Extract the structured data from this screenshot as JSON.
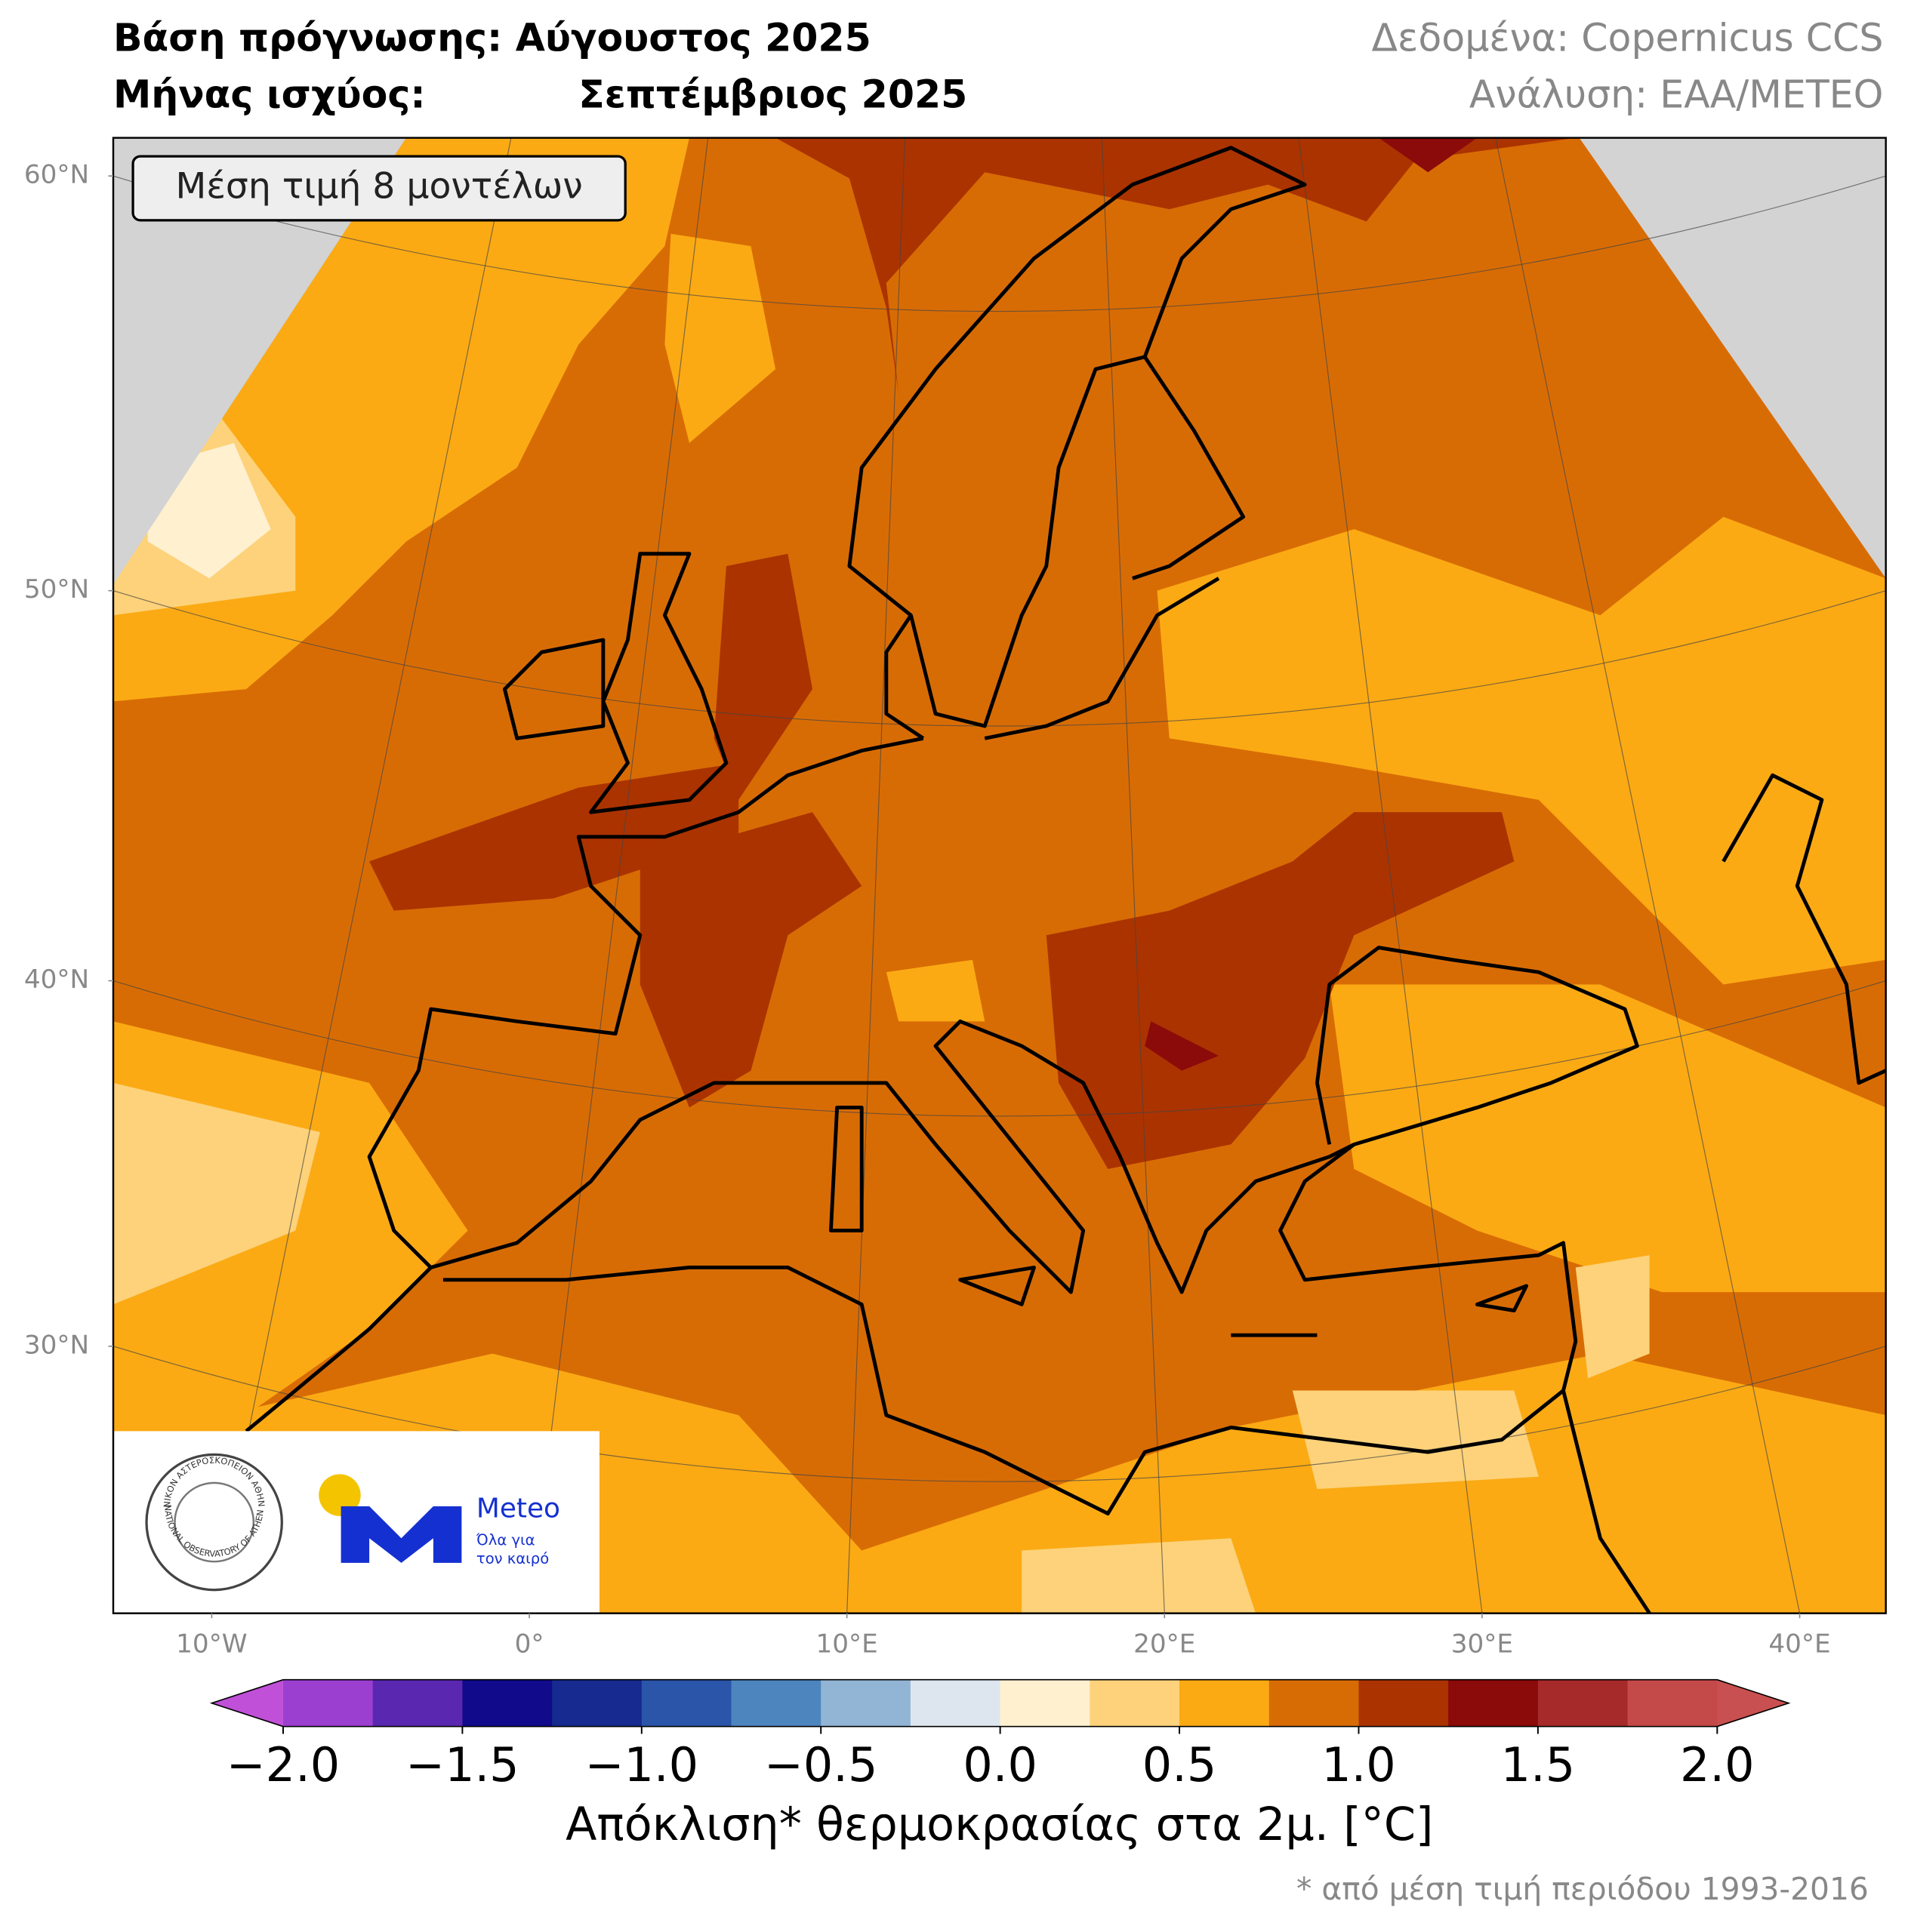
{
  "header": {
    "forecast_base": "Βάση πρόγνωσης: Αύγουστος 2025",
    "valid_label": "Μήνας ισχύος:",
    "valid_month": "Σεπτέμβριος 2025",
    "data_source": "Δεδομένα: Copernicus CCS",
    "analysis": "Ανάλυση: ΕΑΑ/METEO"
  },
  "map": {
    "annotation": "Μέση τιμή 8 μοντέλων",
    "lat_ticks": [
      {
        "value": 60,
        "label": "60°N"
      },
      {
        "value": 50,
        "label": "50°N"
      },
      {
        "value": 40,
        "label": "40°N"
      },
      {
        "value": 30,
        "label": "30°N"
      }
    ],
    "lon_ticks": [
      {
        "value": -10,
        "label": "10°W"
      },
      {
        "value": 0,
        "label": "0°"
      },
      {
        "value": 10,
        "label": "10°E"
      },
      {
        "value": 20,
        "label": "20°E"
      },
      {
        "value": 30,
        "label": "30°E"
      },
      {
        "value": 40,
        "label": "40°E"
      }
    ]
  },
  "colorbar": {
    "range": [
      -2,
      2
    ],
    "ticks": [
      {
        "value": -2,
        "label": "−2.0"
      },
      {
        "value": -1.5,
        "label": "−1.5"
      },
      {
        "value": -1,
        "label": "−1.0"
      },
      {
        "value": -0.5,
        "label": "−0.5"
      },
      {
        "value": 0,
        "label": "0.0"
      },
      {
        "value": 0.5,
        "label": "0.5"
      },
      {
        "value": 1,
        "label": "1.0"
      },
      {
        "value": 1.5,
        "label": "1.5"
      },
      {
        "value": 2,
        "label": "2.0"
      }
    ],
    "colors": [
      "#9b3fd0",
      "#5a28b0",
      "#110a8a",
      "#162a8f",
      "#2b55a8",
      "#4d86bf",
      "#93b5d5",
      "#dde6ef",
      "#fff0d0",
      "#fdd27a",
      "#fbaa14",
      "#d86c04",
      "#ab3300",
      "#8b0a0a",
      "#a62a2a",
      "#c44949"
    ],
    "under_color": "#c050d8",
    "over_color": "#c85050",
    "label": "Απόκλιση* θερμοκρασίας στα 2μ. [°C]",
    "footnote": "* από μέση τιμή περιόδου 1993-2016"
  },
  "logos": {
    "seal_top": "ΕΘΝΙΚΟΝ ΑΣΤΕΡΟΣΚΟΠΕΙΟΝ ΑΘΗΝΩΝ",
    "seal_bottom": "NATIONAL OBSERVATORY OF ATHENS",
    "brand": "Meteo",
    "slogan_1": "Όλα για",
    "slogan_2": "τον καιρό"
  }
}
